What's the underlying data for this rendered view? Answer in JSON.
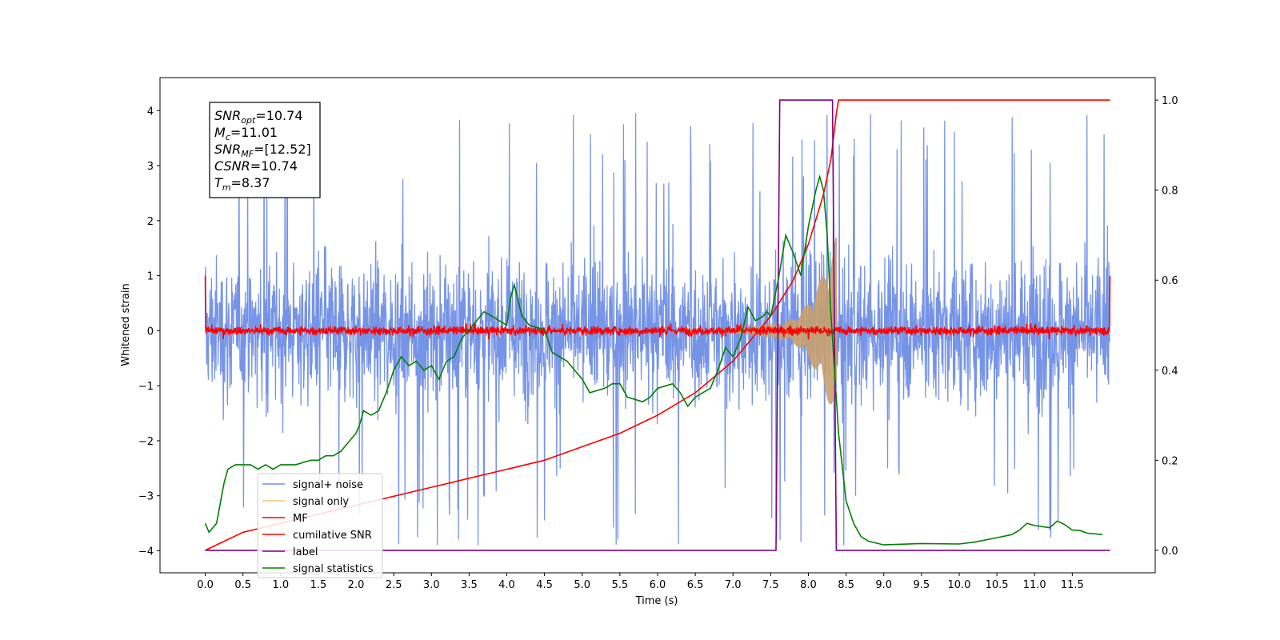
{
  "chart_data": {
    "type": "line",
    "xlabel": "Time (s)",
    "ylabel": "Whitened strain",
    "xlim": [
      -0.6,
      12.6
    ],
    "ylim": [
      -4.4,
      4.6
    ],
    "y2lim": [
      -0.05,
      1.05
    ],
    "xticks": [
      "0.0",
      "0.5",
      "1.0",
      "1.5",
      "2.0",
      "2.5",
      "3.0",
      "3.5",
      "4.0",
      "4.5",
      "5.0",
      "5.5",
      "6.0",
      "6.5",
      "7.0",
      "7.5",
      "8.0",
      "8.5",
      "9.0",
      "9.5",
      "10.0",
      "10.5",
      "11.0",
      "11.5"
    ],
    "yticks": [
      "4",
      "3",
      "2",
      "1",
      "0",
      "−1",
      "−2",
      "−3",
      "−4"
    ],
    "y2ticks": [
      "1.0",
      "0.8",
      "0.6",
      "0.4",
      "0.2",
      "0.0"
    ],
    "annotation": {
      "lines": [
        {
          "sym": "SNR",
          "sub": "opt",
          "value": "=10.74"
        },
        {
          "sym": "M",
          "sub": "c",
          "value": "=11.01"
        },
        {
          "sym": "SNR",
          "sub": "MF",
          "value": "=[12.52]"
        },
        {
          "sym": "CSNR",
          "sub": "",
          "value": "=10.74"
        },
        {
          "sym": "T",
          "sub": "m",
          "value": "=8.37"
        }
      ]
    },
    "legend": {
      "placement": "lower-left",
      "entries": [
        {
          "name": "signal+ noise",
          "color": "#6f8ee6"
        },
        {
          "name": "signal only",
          "color": "#f5c07a"
        },
        {
          "name": "MF",
          "color": "#ff0000"
        },
        {
          "name": "cumilative SNR",
          "color": "#ff0000"
        },
        {
          "name": "label",
          "color": "#800080"
        },
        {
          "name": "signal statistics",
          "color": "#008000"
        }
      ]
    },
    "series": [
      {
        "name": "signal+ noise",
        "axis": "left",
        "color": "#6f8ee6",
        "t_range": [
          0,
          12
        ],
        "envelope_typical": 2.5,
        "envelope_peak": 4.1
      },
      {
        "name": "signal only",
        "axis": "left",
        "color": "#c8a06e",
        "t_range": [
          7.6,
          8.37
        ],
        "amplitude_start": 0.15,
        "amplitude_end": 1.7
      },
      {
        "name": "MF",
        "axis": "left",
        "color": "#ff0000",
        "t_range": [
          0,
          12
        ],
        "noise_amplitude": 0.12
      },
      {
        "name": "cumilative SNR",
        "axis": "right",
        "color": "#ff0000",
        "x": [
          0.0,
          0.5,
          1.0,
          1.5,
          2.0,
          2.5,
          3.0,
          3.5,
          4.0,
          4.5,
          5.0,
          5.5,
          6.0,
          6.5,
          7.0,
          7.5,
          7.8,
          8.0,
          8.2,
          8.3,
          8.37,
          8.4,
          12.0
        ],
        "y": [
          0.0,
          0.04,
          0.06,
          0.08,
          0.1,
          0.12,
          0.14,
          0.16,
          0.18,
          0.2,
          0.23,
          0.26,
          0.3,
          0.35,
          0.42,
          0.52,
          0.6,
          0.68,
          0.79,
          0.87,
          0.97,
          1.0,
          1.0
        ]
      },
      {
        "name": "label",
        "axis": "right",
        "color": "#800080",
        "x": [
          0.0,
          7.57,
          7.62,
          8.32,
          8.37,
          12.0
        ],
        "y": [
          0.0,
          0.0,
          1.0,
          1.0,
          0.0,
          0.0
        ]
      },
      {
        "name": "signal statistics",
        "axis": "right",
        "color": "#008000",
        "x": [
          0.0,
          0.05,
          0.15,
          0.25,
          0.3,
          0.4,
          0.5,
          0.6,
          0.7,
          0.8,
          0.9,
          1.0,
          1.2,
          1.4,
          1.5,
          1.6,
          1.7,
          1.8,
          1.9,
          2.0,
          2.05,
          2.1,
          2.2,
          2.3,
          2.4,
          2.5,
          2.6,
          2.7,
          2.8,
          2.9,
          3.0,
          3.1,
          3.2,
          3.3,
          3.4,
          3.5,
          3.6,
          3.7,
          3.8,
          3.9,
          4.0,
          4.05,
          4.1,
          4.2,
          4.3,
          4.5,
          4.6,
          4.7,
          4.8,
          4.9,
          5.0,
          5.1,
          5.3,
          5.4,
          5.5,
          5.6,
          5.8,
          5.9,
          6.0,
          6.2,
          6.3,
          6.4,
          6.5,
          6.6,
          6.7,
          6.8,
          6.9,
          7.0,
          7.1,
          7.2,
          7.3,
          7.4,
          7.45,
          7.5,
          7.6,
          7.7,
          7.8,
          7.9,
          8.0,
          8.1,
          8.15,
          8.2,
          8.25,
          8.3,
          8.4,
          8.5,
          8.6,
          8.7,
          8.8,
          9.0,
          9.5,
          10.0,
          10.2,
          10.5,
          10.7,
          10.8,
          10.9,
          11.0,
          11.2,
          11.3,
          11.4,
          11.5,
          11.6,
          11.7,
          11.9
        ],
        "y": [
          0.06,
          0.04,
          0.06,
          0.15,
          0.18,
          0.19,
          0.19,
          0.19,
          0.18,
          0.19,
          0.18,
          0.19,
          0.19,
          0.2,
          0.2,
          0.21,
          0.21,
          0.22,
          0.24,
          0.26,
          0.28,
          0.31,
          0.3,
          0.31,
          0.35,
          0.4,
          0.43,
          0.41,
          0.42,
          0.4,
          0.41,
          0.38,
          0.42,
          0.43,
          0.47,
          0.49,
          0.51,
          0.53,
          0.52,
          0.51,
          0.5,
          0.56,
          0.59,
          0.52,
          0.5,
          0.49,
          0.44,
          0.43,
          0.42,
          0.4,
          0.38,
          0.35,
          0.36,
          0.37,
          0.37,
          0.34,
          0.33,
          0.34,
          0.36,
          0.37,
          0.35,
          0.32,
          0.34,
          0.35,
          0.36,
          0.4,
          0.45,
          0.43,
          0.47,
          0.54,
          0.51,
          0.52,
          0.53,
          0.52,
          0.6,
          0.7,
          0.66,
          0.61,
          0.72,
          0.8,
          0.83,
          0.8,
          0.7,
          0.52,
          0.26,
          0.11,
          0.06,
          0.03,
          0.02,
          0.012,
          0.015,
          0.014,
          0.018,
          0.028,
          0.035,
          0.045,
          0.06,
          0.055,
          0.05,
          0.065,
          0.057,
          0.045,
          0.044,
          0.038,
          0.035
        ]
      }
    ]
  }
}
